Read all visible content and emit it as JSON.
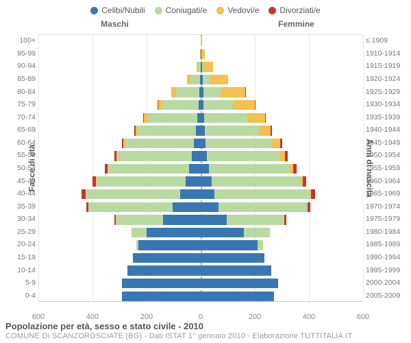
{
  "colors": {
    "celibi": "#3a77b2",
    "coniugati": "#b9d9a2",
    "vedovi": "#f4c04f",
    "divorziati": "#c6352e",
    "grid": "#e8e8e8",
    "center": "#a8b8cc",
    "text": "#666666"
  },
  "legend": [
    {
      "label": "Celibi/Nubili",
      "color": "#3a77b2"
    },
    {
      "label": "Coniugati/e",
      "color": "#b9d9a2"
    },
    {
      "label": "Vedovi/e",
      "color": "#f4c04f"
    },
    {
      "label": "Divorziati/e",
      "color": "#c6352e"
    }
  ],
  "gender": {
    "left": "Maschi",
    "right": "Femmine"
  },
  "axis": {
    "left_title": "Fasce di età",
    "right_title": "Anni di nascita",
    "xmax": 600,
    "xticks": [
      600,
      400,
      200,
      0,
      200,
      400,
      600
    ]
  },
  "footer": {
    "title": "Popolazione per età, sesso e stato civile - 2010",
    "sub": "COMUNE DI SCANZOROSCIATE (BG) - Dati ISTAT 1° gennaio 2010 - Elaborazione TUTTITALIA.IT"
  },
  "rows": [
    {
      "age": "0-4",
      "year": "2005-2009",
      "m": {
        "c": 290,
        "m": 0,
        "v": 0,
        "d": 0
      },
      "f": {
        "c": 270,
        "m": 0,
        "v": 0,
        "d": 0
      }
    },
    {
      "age": "5-9",
      "year": "2000-2004",
      "m": {
        "c": 290,
        "m": 0,
        "v": 0,
        "d": 0
      },
      "f": {
        "c": 285,
        "m": 0,
        "v": 0,
        "d": 0
      }
    },
    {
      "age": "10-14",
      "year": "1995-1999",
      "m": {
        "c": 270,
        "m": 0,
        "v": 0,
        "d": 0
      },
      "f": {
        "c": 260,
        "m": 0,
        "v": 0,
        "d": 0
      }
    },
    {
      "age": "15-19",
      "year": "1990-1994",
      "m": {
        "c": 250,
        "m": 0,
        "v": 0,
        "d": 0
      },
      "f": {
        "c": 235,
        "m": 0,
        "v": 0,
        "d": 0
      }
    },
    {
      "age": "20-24",
      "year": "1985-1989",
      "m": {
        "c": 230,
        "m": 8,
        "v": 0,
        "d": 0
      },
      "f": {
        "c": 210,
        "m": 20,
        "v": 0,
        "d": 0
      }
    },
    {
      "age": "25-29",
      "year": "1980-1984",
      "m": {
        "c": 200,
        "m": 55,
        "v": 0,
        "d": 0
      },
      "f": {
        "c": 160,
        "m": 95,
        "v": 0,
        "d": 0
      }
    },
    {
      "age": "30-34",
      "year": "1975-1979",
      "m": {
        "c": 140,
        "m": 175,
        "v": 0,
        "d": 4
      },
      "f": {
        "c": 95,
        "m": 215,
        "v": 0,
        "d": 6
      }
    },
    {
      "age": "35-39",
      "year": "1970-1974",
      "m": {
        "c": 105,
        "m": 310,
        "v": 0,
        "d": 9
      },
      "f": {
        "c": 65,
        "m": 330,
        "v": 0,
        "d": 11
      }
    },
    {
      "age": "40-44",
      "year": "1965-1969",
      "m": {
        "c": 75,
        "m": 350,
        "v": 1,
        "d": 14
      },
      "f": {
        "c": 50,
        "m": 355,
        "v": 3,
        "d": 16
      }
    },
    {
      "age": "45-49",
      "year": "1960-1964",
      "m": {
        "c": 55,
        "m": 330,
        "v": 2,
        "d": 13
      },
      "f": {
        "c": 40,
        "m": 330,
        "v": 6,
        "d": 15
      }
    },
    {
      "age": "50-54",
      "year": "1955-1959",
      "m": {
        "c": 42,
        "m": 300,
        "v": 3,
        "d": 10
      },
      "f": {
        "c": 30,
        "m": 300,
        "v": 12,
        "d": 12
      }
    },
    {
      "age": "55-59",
      "year": "1950-1954",
      "m": {
        "c": 32,
        "m": 275,
        "v": 4,
        "d": 8
      },
      "f": {
        "c": 22,
        "m": 270,
        "v": 20,
        "d": 10
      }
    },
    {
      "age": "60-64",
      "year": "1945-1949",
      "m": {
        "c": 25,
        "m": 255,
        "v": 6,
        "d": 6
      },
      "f": {
        "c": 18,
        "m": 245,
        "v": 30,
        "d": 8
      }
    },
    {
      "age": "65-69",
      "year": "1940-1944",
      "m": {
        "c": 18,
        "m": 215,
        "v": 8,
        "d": 4
      },
      "f": {
        "c": 14,
        "m": 200,
        "v": 45,
        "d": 5
      }
    },
    {
      "age": "70-74",
      "year": "1935-1939",
      "m": {
        "c": 12,
        "m": 185,
        "v": 12,
        "d": 3
      },
      "f": {
        "c": 12,
        "m": 160,
        "v": 65,
        "d": 4
      }
    },
    {
      "age": "75-79",
      "year": "1930-1934",
      "m": {
        "c": 8,
        "m": 135,
        "v": 15,
        "d": 2
      },
      "f": {
        "c": 10,
        "m": 110,
        "v": 80,
        "d": 2
      }
    },
    {
      "age": "80-84",
      "year": "1925-1929",
      "m": {
        "c": 5,
        "m": 85,
        "v": 18,
        "d": 1
      },
      "f": {
        "c": 9,
        "m": 65,
        "v": 90,
        "d": 1
      }
    },
    {
      "age": "85-89",
      "year": "1920-1924",
      "m": {
        "c": 3,
        "m": 35,
        "v": 14,
        "d": 0
      },
      "f": {
        "c": 7,
        "m": 25,
        "v": 70,
        "d": 0
      }
    },
    {
      "age": "90-94",
      "year": "1915-1919",
      "m": {
        "c": 1,
        "m": 8,
        "v": 7,
        "d": 0
      },
      "f": {
        "c": 4,
        "m": 6,
        "v": 35,
        "d": 0
      }
    },
    {
      "age": "95-99",
      "year": "1910-1914",
      "m": {
        "c": 0,
        "m": 1,
        "v": 2,
        "d": 0
      },
      "f": {
        "c": 2,
        "m": 1,
        "v": 12,
        "d": 0
      }
    },
    {
      "age": "100+",
      "year": "≤ 1909",
      "m": {
        "c": 0,
        "m": 0,
        "v": 0,
        "d": 0
      },
      "f": {
        "c": 1,
        "m": 0,
        "v": 3,
        "d": 0
      }
    }
  ]
}
